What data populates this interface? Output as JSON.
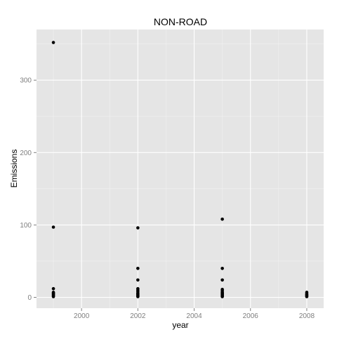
{
  "chart_data": {
    "type": "scatter",
    "title": "NON-ROAD",
    "xlabel": "year",
    "ylabel": "Emissions",
    "xlim": [
      1998.4,
      2008.6
    ],
    "ylim": [
      -15,
      370
    ],
    "x_ticks": [
      2000,
      2002,
      2004,
      2006,
      2008
    ],
    "y_ticks": [
      0,
      100,
      200,
      300
    ],
    "x_minor_ticks": [
      1999,
      2001,
      2003,
      2005,
      2007
    ],
    "y_minor_ticks": [
      50,
      150,
      250,
      350
    ],
    "grid": true,
    "background_color": "#E5E5E5",
    "grid_color": "#FFFFFF",
    "point_color": "#000000",
    "points": [
      {
        "x": 1999,
        "y": 352
      },
      {
        "x": 1999,
        "y": 97
      },
      {
        "x": 1999,
        "y": 12
      },
      {
        "x": 1999,
        "y": 7
      },
      {
        "x": 1999,
        "y": 6
      },
      {
        "x": 1999,
        "y": 5
      },
      {
        "x": 1999,
        "y": 4
      },
      {
        "x": 1999,
        "y": 3
      },
      {
        "x": 1999,
        "y": 2
      },
      {
        "x": 1999,
        "y": 1
      },
      {
        "x": 2002,
        "y": 96
      },
      {
        "x": 2002,
        "y": 40
      },
      {
        "x": 2002,
        "y": 24
      },
      {
        "x": 2002,
        "y": 12
      },
      {
        "x": 2002,
        "y": 10
      },
      {
        "x": 2002,
        "y": 8
      },
      {
        "x": 2002,
        "y": 6
      },
      {
        "x": 2002,
        "y": 5
      },
      {
        "x": 2002,
        "y": 4
      },
      {
        "x": 2002,
        "y": 3
      },
      {
        "x": 2002,
        "y": 2
      },
      {
        "x": 2002,
        "y": 1
      },
      {
        "x": 2005,
        "y": 108
      },
      {
        "x": 2005,
        "y": 40
      },
      {
        "x": 2005,
        "y": 24
      },
      {
        "x": 2005,
        "y": 11
      },
      {
        "x": 2005,
        "y": 9
      },
      {
        "x": 2005,
        "y": 7
      },
      {
        "x": 2005,
        "y": 6
      },
      {
        "x": 2005,
        "y": 5
      },
      {
        "x": 2005,
        "y": 4
      },
      {
        "x": 2005,
        "y": 3
      },
      {
        "x": 2005,
        "y": 2
      },
      {
        "x": 2005,
        "y": 1
      },
      {
        "x": 2008,
        "y": 7
      },
      {
        "x": 2008,
        "y": 5
      },
      {
        "x": 2008,
        "y": 4
      },
      {
        "x": 2008,
        "y": 3
      },
      {
        "x": 2008,
        "y": 2
      },
      {
        "x": 2008,
        "y": 1
      }
    ]
  }
}
